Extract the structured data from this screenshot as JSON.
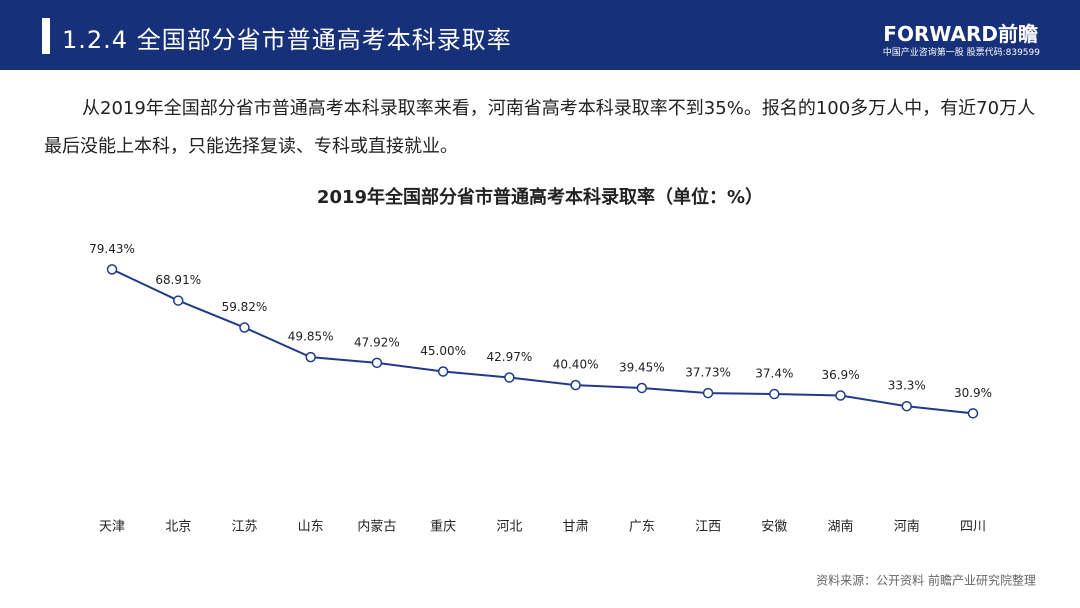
{
  "header": {
    "title": "1.2.4 全国部分省市普通高考本科录取率",
    "logo": "FORWARD前瞻",
    "logo_sub": "中国产业咨询第一股 股票代码:839599"
  },
  "paragraph": "从2019年全国部分省市普通高考本科录取率来看，河南省高考本科录取率不到35%。报名的100多万人中，有近70万人最后没能上本科，只能选择复读、专科或直接就业。",
  "chart_data": {
    "type": "line",
    "title": "2019年全国部分省市普通高考本科录取率（单位：%）",
    "categories": [
      "天津",
      "北京",
      "江苏",
      "山东",
      "内蒙古",
      "重庆",
      "河北",
      "甘肃",
      "广东",
      "江西",
      "安徽",
      "湖南",
      "河南",
      "四川"
    ],
    "values": [
      79.43,
      68.91,
      59.82,
      49.85,
      47.92,
      45.0,
      42.97,
      40.4,
      39.45,
      37.73,
      37.4,
      36.9,
      33.3,
      30.9
    ],
    "value_labels": [
      "79.43%",
      "68.91%",
      "59.82%",
      "49.85%",
      "47.92%",
      "45.00%",
      "42.97%",
      "40.40%",
      "39.45%",
      "37.73%",
      "37.4%",
      "36.9%",
      "33.3%",
      "30.9%"
    ],
    "color": "#1f3a8a",
    "ylim": [
      0,
      90
    ],
    "source": "资料来源：公开资料 前瞻产业研究院整理"
  }
}
